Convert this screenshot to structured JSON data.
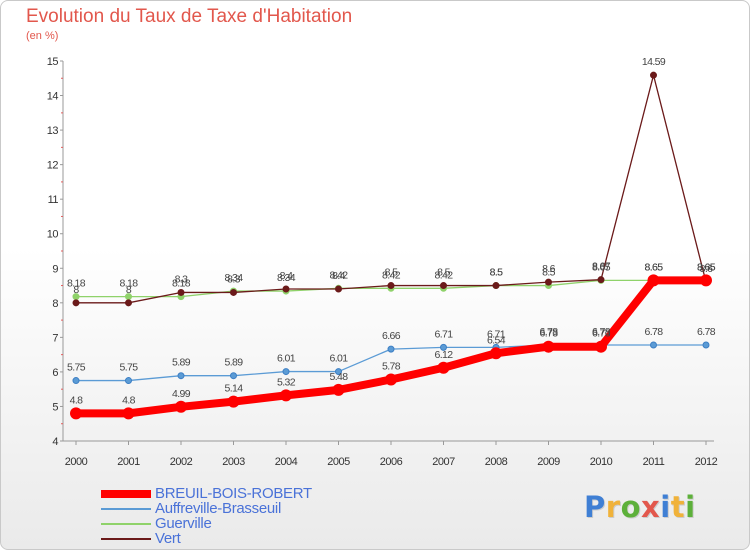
{
  "title": "Evolution du Taux de Taxe d'Habitation",
  "unit_label": "(en %)",
  "logo": {
    "letters": [
      "P",
      "r",
      "o",
      "x",
      "i",
      "t",
      "i"
    ],
    "colors": [
      "#3f7fd4",
      "#f0b23a",
      "#5db03a",
      "#e2574c",
      "#3f7fd4",
      "#f0b23a",
      "#5db03a"
    ]
  },
  "chart_data": {
    "type": "line",
    "title": "Evolution du Taux de Taxe d'Habitation",
    "ylabel": "(en %)",
    "x": [
      "2000",
      "2001",
      "2002",
      "2003",
      "2004",
      "2005",
      "2006",
      "2007",
      "2008",
      "2009",
      "2010",
      "2011",
      "2012"
    ],
    "ylim": [
      4,
      15
    ],
    "yticks": [
      "4",
      "5",
      "6",
      "7",
      "8",
      "9",
      "10",
      "11",
      "12",
      "13",
      "14",
      "15"
    ],
    "grid": false,
    "legend": "bottom-left",
    "series": [
      {
        "name": "BREUIL-BOIS-ROBERT",
        "color": "#ff0000",
        "values": [
          4.8,
          4.8,
          4.99,
          5.14,
          5.32,
          5.48,
          5.78,
          6.12,
          6.54,
          6.73,
          6.73,
          8.65,
          8.65
        ],
        "labels": [
          "4.8",
          "4.8",
          "4.99",
          "5.14",
          "5.32",
          "5.48",
          "5.78",
          "6.12",
          "6.54",
          "6.73",
          "6.73",
          "8.65",
          "8.65"
        ]
      },
      {
        "name": "Auffreville-Brasseuil",
        "color": "#5b9bd5",
        "values": [
          5.75,
          5.75,
          5.89,
          5.89,
          6.01,
          6.01,
          6.66,
          6.71,
          6.71,
          6.78,
          6.78,
          6.78,
          6.78
        ],
        "labels": [
          "5.75",
          "5.75",
          "5.89",
          "5.89",
          "6.01",
          "6.01",
          "6.66",
          "6.71",
          "6.71",
          "6.78",
          "6.78",
          "6.78",
          "6.78"
        ]
      },
      {
        "name": "Guerville",
        "color": "#8fd26a",
        "values": [
          8.18,
          8.18,
          8.18,
          8.34,
          8.34,
          8.42,
          8.42,
          8.42,
          8.5,
          8.5,
          8.65,
          8.65,
          8.65
        ],
        "labels": [
          "8.18",
          "8.18",
          "8.18",
          "8.34",
          "8.34",
          "8.42",
          "8.42",
          "8.42",
          "8.5",
          "8.5",
          "8.65",
          "8.65",
          "8.65"
        ]
      },
      {
        "name": "Vert",
        "color": "#6b1a1a",
        "values": [
          8,
          8,
          8.3,
          8.3,
          8.4,
          8.4,
          8.5,
          8.5,
          8.5,
          8.6,
          8.67,
          14.59,
          8.6
        ],
        "labels": [
          "8",
          "8",
          "8.3",
          "8.3",
          "8.4",
          "8.4",
          "8.5",
          "8.5",
          "8.5",
          "8.6",
          "8.67",
          "14.59",
          "8.6"
        ]
      }
    ]
  }
}
